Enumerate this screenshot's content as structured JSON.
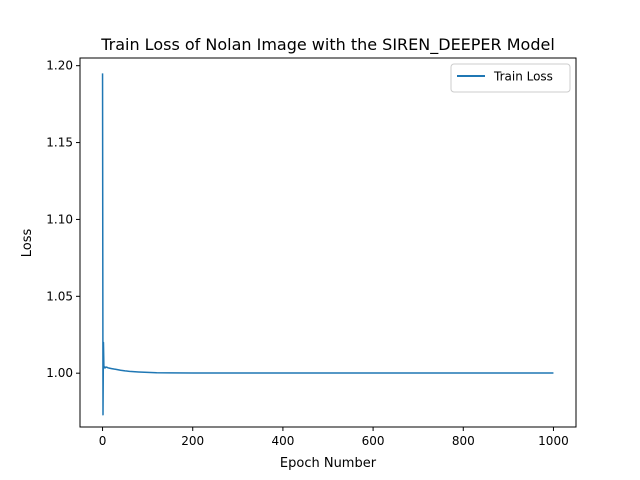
{
  "chart_data": {
    "type": "line",
    "title": "Train Loss of Nolan Image with the SIREN_DEEPER Model",
    "xlabel": "Epoch Number",
    "ylabel": "Loss",
    "xlim": [
      -50,
      1050
    ],
    "ylim": [
      0.965,
      1.205
    ],
    "xticks": [
      0,
      200,
      400,
      600,
      800,
      1000
    ],
    "xtick_labels": [
      "0",
      "200",
      "400",
      "600",
      "800",
      "1000"
    ],
    "yticks": [
      1.0,
      1.05,
      1.1,
      1.15,
      1.2
    ],
    "ytick_labels": [
      "1.00",
      "1.05",
      "1.10",
      "1.15",
      "1.20"
    ],
    "grid": false,
    "legend": "top-right",
    "series": [
      {
        "name": "Train Loss",
        "color": "#1f77b4",
        "x": [
          0,
          1,
          2,
          3,
          4,
          5,
          6,
          8,
          10,
          12,
          15,
          20,
          25,
          30,
          40,
          50,
          60,
          80,
          100,
          120,
          150,
          200,
          250,
          300,
          400,
          500,
          600,
          700,
          800,
          900,
          1000
        ],
        "y": [
          1.195,
          0.973,
          1.02,
          1.004,
          1.0035,
          1.004,
          1.0035,
          1.004,
          1.0038,
          1.0035,
          1.0033,
          1.003,
          1.0027,
          1.0025,
          1.0019,
          1.0015,
          1.0012,
          1.0008,
          1.0005,
          1.0003,
          1.0002,
          1.0001,
          1.0001,
          1.0001,
          1.0001,
          1.0001,
          1.0001,
          1.0001,
          1.0001,
          1.0001,
          1.0001
        ]
      }
    ]
  }
}
